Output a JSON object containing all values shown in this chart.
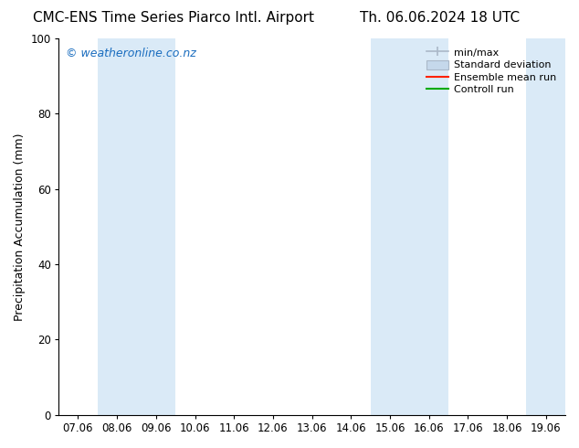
{
  "title_left": "CMC-ENS Time Series Piarco Intl. Airport",
  "title_right": "Th. 06.06.2024 18 UTC",
  "ylabel": "Precipitation Accumulation (mm)",
  "watermark": "© weatheronline.co.nz",
  "ylim": [
    0,
    100
  ],
  "yticks": [
    0,
    20,
    40,
    60,
    80,
    100
  ],
  "xtick_labels": [
    "07.06",
    "08.06",
    "09.06",
    "10.06",
    "11.06",
    "12.06",
    "13.06",
    "14.06",
    "15.06",
    "16.06",
    "17.06",
    "18.06",
    "19.06"
  ],
  "shaded_columns": [
    1,
    2,
    8,
    9,
    12
  ],
  "shaded_color": "#daeaf7",
  "bg_color": "#ffffff",
  "legend_entries": [
    "min/max",
    "Standard deviation",
    "Ensemble mean run",
    "Controll run"
  ],
  "minmax_color": "#aab8c8",
  "std_color": "#c5d8eb",
  "ensemble_color": "#ff2200",
  "control_color": "#00aa00",
  "title_fontsize": 11,
  "tick_fontsize": 8.5,
  "ylabel_fontsize": 9,
  "watermark_color": "#1a6dbf",
  "watermark_fontsize": 9
}
